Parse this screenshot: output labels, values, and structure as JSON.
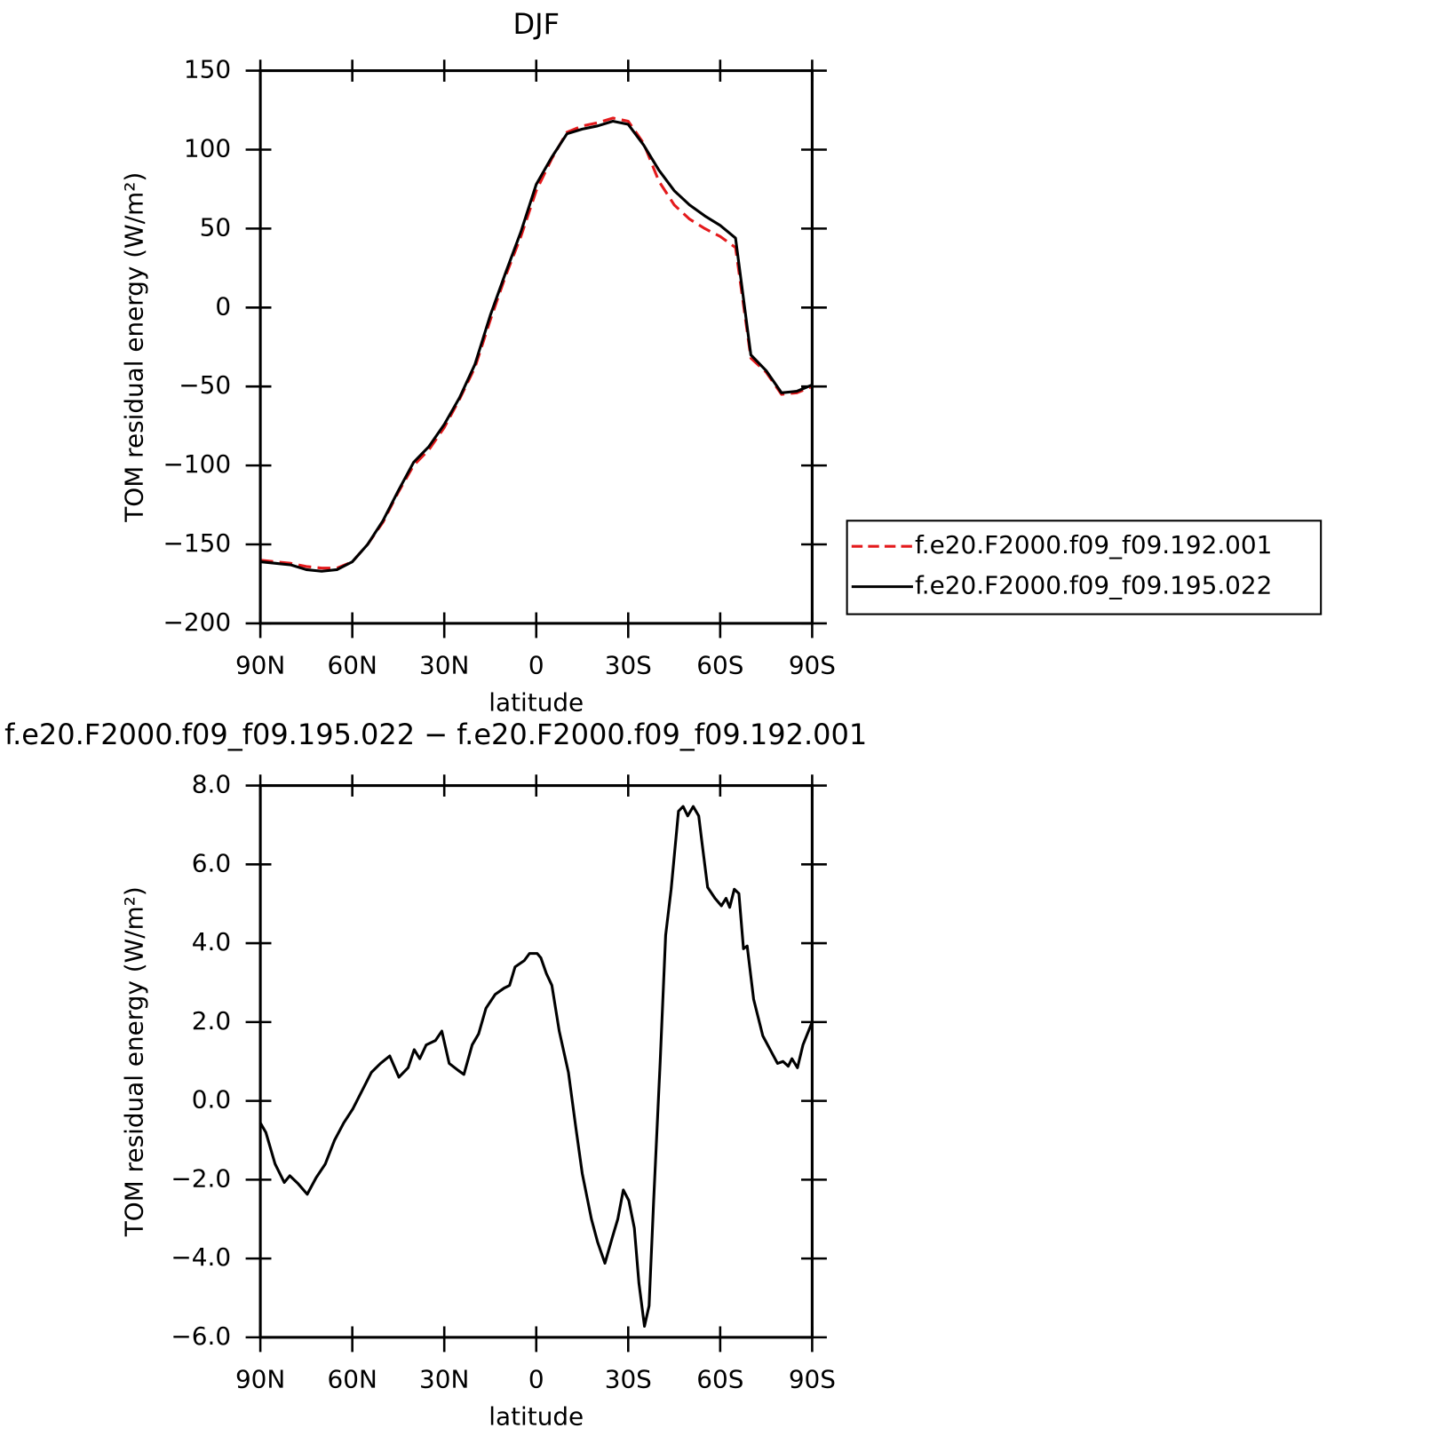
{
  "chart_data": [
    {
      "type": "line",
      "title": "DJF",
      "xlabel": "latitude",
      "ylabel": "TOM residual energy (W/m²)",
      "x": [
        90,
        85,
        80,
        75,
        70,
        65,
        60,
        55,
        50,
        45,
        40,
        35,
        30,
        25,
        20,
        15,
        10,
        5,
        0,
        -5,
        -10,
        -15,
        -20,
        -25,
        -30,
        -35,
        -40,
        -45,
        -50,
        -55,
        -60,
        -65,
        -70,
        -75,
        -80,
        -85,
        -90
      ],
      "series": [
        {
          "name": "f.e20.F2000.f09_f09.192.001",
          "color": "#e41a1c",
          "linestyle": "dashed",
          "values": [
            -160,
            -161,
            -162,
            -164,
            -165,
            -165,
            -161,
            -150,
            -136,
            -117,
            -100,
            -90,
            -76,
            -58,
            -38,
            -8,
            20,
            45,
            74,
            94,
            111,
            115,
            117,
            120,
            118,
            104,
            80,
            65,
            56,
            50,
            45,
            38,
            -32,
            -41,
            -55,
            -54,
            -50
          ]
        },
        {
          "name": "f.e20.F2000.f09_f09.195.022",
          "color": "#000000",
          "linestyle": "solid",
          "values": [
            -161,
            -162,
            -163,
            -166,
            -167,
            -166,
            -161,
            -150,
            -135,
            -116,
            -98,
            -88,
            -74,
            -57,
            -36,
            -5,
            22,
            48,
            78,
            95,
            110,
            113,
            115,
            118,
            116,
            103,
            87,
            74,
            65,
            58,
            52,
            44,
            -30,
            -40,
            -54,
            -53,
            -49
          ]
        }
      ],
      "xlim": [
        90,
        -90
      ],
      "xticks": [
        {
          "value": 90,
          "label": "90N"
        },
        {
          "value": 60,
          "label": "60N"
        },
        {
          "value": 30,
          "label": "30N"
        },
        0,
        {
          "value": -30,
          "label": "30S"
        },
        {
          "value": -60,
          "label": "60S"
        },
        {
          "value": -90,
          "label": "90S"
        }
      ],
      "ylim": [
        -200,
        150
      ],
      "yticks": [
        {
          "value": -200,
          "label": "−200"
        },
        {
          "value": -150,
          "label": "−150"
        },
        {
          "value": -100,
          "label": "−100"
        },
        {
          "value": -50,
          "label": "−50"
        },
        0,
        50,
        100,
        150
      ],
      "legend": "right"
    },
    {
      "type": "line",
      "title": "f.e20.F2000.f09_f09.195.022 − f.e20.F2000.f09_f09.192.001",
      "xlabel": "latitude",
      "ylabel": "TOM residual energy (W/m²)",
      "x": [
        90,
        88.2,
        85.2,
        82.2,
        80.4,
        77.7,
        74.7,
        71.8,
        68.8,
        65.8,
        62.8,
        59.8,
        56.8,
        53.8,
        50.8,
        47.8,
        44.8,
        41.8,
        39.8,
        38,
        35.9,
        32.9,
        30.8,
        28.4,
        25.4,
        23.6,
        20.9,
        18.8,
        16.4,
        13.4,
        10.5,
        8.7,
        6.9,
        3.9,
        2.2,
        -0.3,
        -1.5,
        -3.3,
        -5.1,
        -7.5,
        -10.5,
        -12.9,
        -15,
        -18,
        -20,
        -22.4,
        -24.8,
        -26.6,
        -28.4,
        -30.2,
        -32,
        -33.5,
        -35.3,
        -36.8,
        -38.3,
        -40.4,
        -42.2,
        -44,
        -46.4,
        -47.9,
        -49.4,
        -51.2,
        -53,
        -54.1,
        -55.9,
        -58.3,
        -60.4,
        -61.9,
        -63.1,
        -64.6,
        -66.1,
        -67.6,
        -68.8,
        -70.9,
        -73.9,
        -76.3,
        -78.7,
        -80.5,
        -82.2,
        -83.4,
        -85.2,
        -87,
        -90
      ],
      "values": [
        -0.56,
        -0.8,
        -1.6,
        -2.07,
        -1.9,
        -2.1,
        -2.37,
        -1.95,
        -1.6,
        -1.0,
        -0.56,
        -0.2,
        0.26,
        0.72,
        0.95,
        1.14,
        0.6,
        0.84,
        1.3,
        1.07,
        1.42,
        1.53,
        1.77,
        0.95,
        0.77,
        0.67,
        1.42,
        1.7,
        2.35,
        2.7,
        2.86,
        2.93,
        3.4,
        3.56,
        3.74,
        3.74,
        3.63,
        3.23,
        2.93,
        1.77,
        0.72,
        -0.67,
        -1.84,
        -3.0,
        -3.58,
        -4.12,
        -3.47,
        -3.0,
        -2.26,
        -2.53,
        -3.23,
        -4.63,
        -5.72,
        -5.2,
        -2.53,
        0.95,
        4.2,
        5.37,
        7.35,
        7.47,
        7.23,
        7.47,
        7.23,
        6.53,
        5.42,
        5.14,
        4.95,
        5.14,
        4.91,
        5.37,
        5.26,
        3.86,
        3.93,
        2.58,
        1.65,
        1.3,
        0.95,
        1.0,
        0.88,
        1.07,
        0.84,
        1.42,
        2.0
      ],
      "color": "#000000",
      "xlim": [
        90,
        -90
      ],
      "xticks": [
        {
          "value": 90,
          "label": "90N"
        },
        {
          "value": 60,
          "label": "60N"
        },
        {
          "value": 30,
          "label": "30N"
        },
        0,
        {
          "value": -30,
          "label": "30S"
        },
        {
          "value": -60,
          "label": "60S"
        },
        {
          "value": -90,
          "label": "90S"
        }
      ],
      "ylim": [
        -6,
        8
      ],
      "yticks": [
        {
          "value": -6,
          "label": "−6.0"
        },
        {
          "value": -4,
          "label": "−4.0"
        },
        {
          "value": -2,
          "label": "−2.0"
        },
        {
          "value": 0,
          "label": "0.0"
        },
        {
          "value": 2,
          "label": "2.0"
        },
        {
          "value": 4,
          "label": "4.0"
        },
        {
          "value": 6,
          "label": "6.0"
        },
        {
          "value": 8,
          "label": "8.0"
        }
      ]
    }
  ]
}
